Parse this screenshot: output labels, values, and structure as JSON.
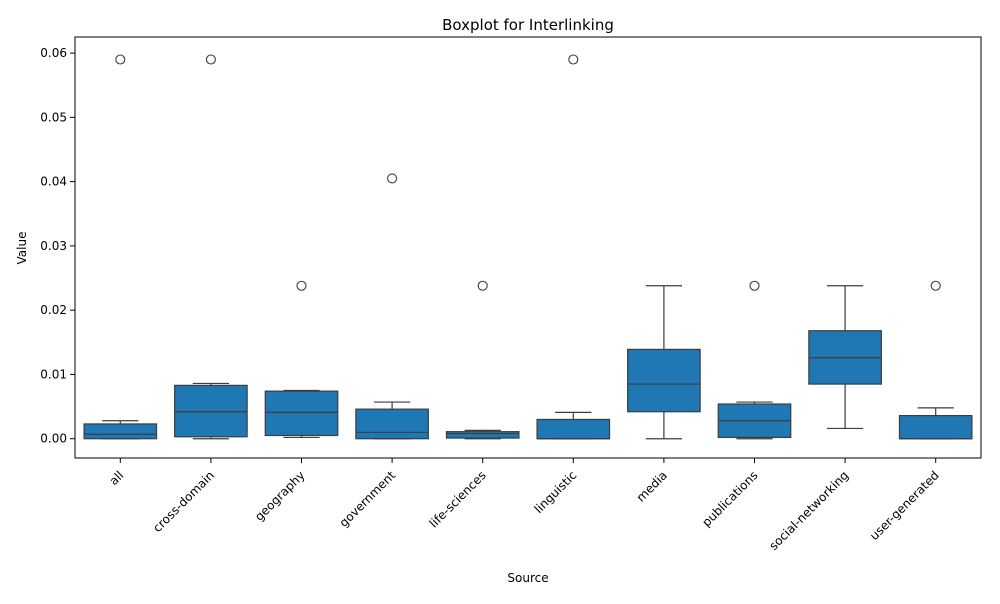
{
  "chart_data": {
    "type": "boxplot",
    "title": "Boxplot for Interlinking",
    "xlabel": "Source",
    "ylabel": "Value",
    "ylim": [
      -0.003,
      0.0625
    ],
    "yticks": [
      0.0,
      0.01,
      0.02,
      0.03,
      0.04,
      0.05,
      0.06
    ],
    "ytick_labels": [
      "0.00",
      "0.01",
      "0.02",
      "0.03",
      "0.04",
      "0.05",
      "0.06"
    ],
    "grid": false,
    "box_color": "#1f77b4",
    "categories": [
      "all",
      "cross-domain",
      "geography",
      "government",
      "life-sciences",
      "linguistic",
      "media",
      "publications",
      "social-networking",
      "user-generated"
    ],
    "boxes": [
      {
        "category": "all",
        "whisker_low": 0.0,
        "q1": 0.0,
        "median": 0.0007,
        "q3": 0.0023,
        "whisker_high": 0.0028,
        "outliers": [
          0.059
        ]
      },
      {
        "category": "cross-domain",
        "whisker_low": 0.0,
        "q1": 0.0003,
        "median": 0.0042,
        "q3": 0.0083,
        "whisker_high": 0.0086,
        "outliers": [
          0.059
        ]
      },
      {
        "category": "geography",
        "whisker_low": 0.0002,
        "q1": 0.0005,
        "median": 0.0041,
        "q3": 0.0074,
        "whisker_high": 0.0075,
        "outliers": [
          0.0238
        ]
      },
      {
        "category": "government",
        "whisker_low": 0.0,
        "q1": 0.0,
        "median": 0.001,
        "q3": 0.0046,
        "whisker_high": 0.0057,
        "outliers": [
          0.0405
        ]
      },
      {
        "category": "life-sciences",
        "whisker_low": 0.0,
        "q1": 0.0001,
        "median": 0.0008,
        "q3": 0.0011,
        "whisker_high": 0.0013,
        "outliers": [
          0.0238
        ]
      },
      {
        "category": "linguistic",
        "whisker_low": 0.0,
        "q1": 0.0,
        "median": 0.0,
        "q3": 0.003,
        "whisker_high": 0.0041,
        "outliers": [
          0.059
        ]
      },
      {
        "category": "media",
        "whisker_low": 0.0,
        "q1": 0.0042,
        "median": 0.0085,
        "q3": 0.0139,
        "whisker_high": 0.0238,
        "outliers": []
      },
      {
        "category": "publications",
        "whisker_low": 0.0,
        "q1": 0.0002,
        "median": 0.0028,
        "q3": 0.0054,
        "whisker_high": 0.0057,
        "outliers": [
          0.0238
        ]
      },
      {
        "category": "social-networking",
        "whisker_low": 0.0016,
        "q1": 0.0085,
        "median": 0.0126,
        "q3": 0.0168,
        "whisker_high": 0.0238,
        "outliers": []
      },
      {
        "category": "user-generated",
        "whisker_low": 0.0,
        "q1": 0.0,
        "median": 0.0,
        "q3": 0.0036,
        "whisker_high": 0.0048,
        "outliers": [
          0.0238
        ]
      }
    ]
  }
}
